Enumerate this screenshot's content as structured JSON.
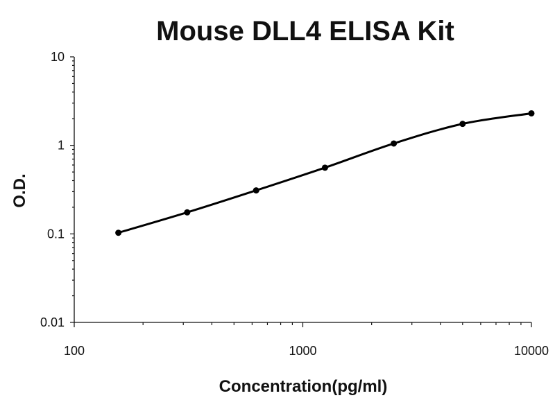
{
  "chart_data": {
    "type": "scatter",
    "title": "Mouse DLL4 ELISA Kit",
    "xlabel": "Concentration(pg/ml)",
    "ylabel": "O.D.",
    "x_scale": "log",
    "y_scale": "log",
    "xlim": [
      100,
      10000
    ],
    "ylim": [
      0.01,
      10
    ],
    "x_ticks": [
      100,
      1000,
      10000
    ],
    "x_tick_labels": [
      "100",
      "1000",
      "10000"
    ],
    "y_ticks": [
      0.01,
      0.1,
      1,
      10
    ],
    "y_tick_labels": [
      "0.01",
      "0.1",
      "1",
      "10"
    ],
    "grid": false,
    "series": [
      {
        "x": [
          156,
          312,
          625,
          1250,
          2500,
          5000,
          10000
        ],
        "y": [
          0.103,
          0.175,
          0.31,
          0.56,
          1.05,
          1.75,
          2.3
        ],
        "curve": "smooth",
        "color": "#000000"
      }
    ]
  }
}
